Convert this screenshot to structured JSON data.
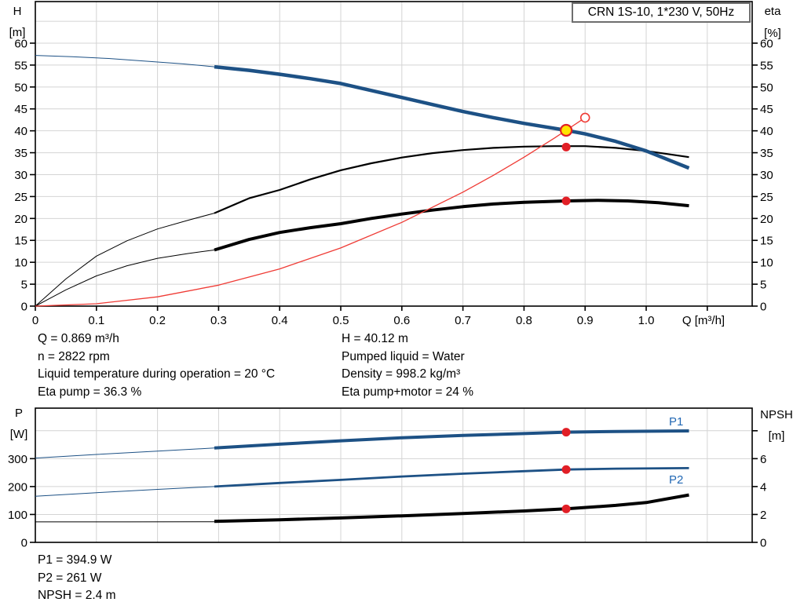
{
  "title_box": {
    "label": "CRN 1S-10, 1*230 V, 50Hz"
  },
  "info_top_left": [
    "Q = 0.869 m³/h",
    "n = 2822 rpm",
    "Liquid temperature during operation = 20 °C",
    "Eta pump = 36.3 %"
  ],
  "info_top_right": [
    "H = 40.12 m",
    "Pumped liquid = Water",
    "Density = 998.2 kg/m³",
    "Eta pump+motor = 24 %"
  ],
  "info_bottom": [
    "P1 = 394.9 W",
    "P2 = 261 W",
    "NPSH = 2.4 m"
  ],
  "colors": {
    "blue": "#1d5185",
    "black": "#000000",
    "red_line": "#ef3b35",
    "red": "#e11f26",
    "yellow": "#ffe400",
    "white": "#ffffff",
    "grid": "#d4d4d4",
    "frame": "#000000",
    "label_blue": "#2268b4"
  },
  "chart_data": [
    {
      "type": "line",
      "title": "CRN 1S-10, 1*230 V, 50Hz",
      "x_axis": {
        "label": "Q [m³/h]",
        "label_at": 1.094,
        "min": 0,
        "max": 1.1735,
        "ticks": [
          0,
          0.1,
          0.2,
          0.3,
          0.4,
          0.5,
          0.6,
          0.7,
          0.8,
          0.9,
          1.0,
          1.1
        ],
        "tick_labels": [
          "0",
          "0.1",
          "0.2",
          "0.3",
          "0.4",
          "0.5",
          "0.6",
          "0.7",
          "0.8",
          "0.9",
          "1.0",
          ""
        ],
        "grid": [
          0.1,
          0.2,
          0.3,
          0.4,
          0.5,
          0.6,
          0.7,
          0.8,
          0.9,
          1.0,
          1.1
        ]
      },
      "y_left": {
        "title": [
          "H",
          "[m]"
        ],
        "min": 0,
        "max": 69.49,
        "ticks": [
          0,
          5,
          10,
          15,
          20,
          25,
          30,
          35,
          40,
          45,
          50,
          55,
          60
        ],
        "tick_labels": [
          "0",
          "5",
          "10",
          "15",
          "20",
          "25",
          "30",
          "35",
          "40",
          "45",
          "50",
          "55",
          "60"
        ],
        "grid": [
          5,
          10,
          15,
          20,
          25,
          30,
          35,
          40,
          45,
          50,
          55,
          60,
          65
        ]
      },
      "y_right": {
        "title": [
          "eta",
          "[%]"
        ],
        "min": 0,
        "max": 69.49,
        "ticks": [
          0,
          5,
          10,
          15,
          20,
          25,
          30,
          35,
          40,
          45,
          50,
          55,
          60
        ],
        "tick_labels": [
          "0",
          "5",
          "10",
          "15",
          "20",
          "25",
          "30",
          "35",
          "40",
          "45",
          "50",
          "55",
          "60"
        ]
      },
      "series": [
        {
          "id": "eta-pump-curve-low-flow",
          "axis": "left",
          "color": "black",
          "width": 1,
          "points": [
            [
              0,
              0
            ],
            [
              0.05,
              6.2
            ],
            [
              0.1,
              11.4
            ],
            [
              0.15,
              14.9
            ],
            [
              0.2,
              17.6
            ],
            [
              0.25,
              19.6
            ],
            [
              0.293,
              21.2
            ]
          ]
        },
        {
          "id": "eta-pump-curve",
          "axis": "left",
          "color": "black",
          "width": 2.2,
          "points": [
            [
              0.293,
              21.2
            ],
            [
              0.35,
              24.6
            ],
            [
              0.4,
              26.5
            ],
            [
              0.45,
              28.9
            ],
            [
              0.5,
              31.0
            ],
            [
              0.55,
              32.6
            ],
            [
              0.6,
              33.9
            ],
            [
              0.65,
              34.9
            ],
            [
              0.7,
              35.6
            ],
            [
              0.75,
              36.1
            ],
            [
              0.8,
              36.4
            ],
            [
              0.85,
              36.5
            ],
            [
              0.9,
              36.5
            ],
            [
              0.95,
              36.1
            ],
            [
              1.0,
              35.4
            ],
            [
              1.07,
              34.0
            ]
          ]
        },
        {
          "id": "eta-pump-motor-curve-low-flow",
          "axis": "left",
          "color": "black",
          "width": 1,
          "points": [
            [
              0,
              0
            ],
            [
              0.05,
              3.7
            ],
            [
              0.1,
              6.9
            ],
            [
              0.15,
              9.2
            ],
            [
              0.2,
              10.9
            ],
            [
              0.25,
              12.0
            ],
            [
              0.293,
              12.8
            ]
          ]
        },
        {
          "id": "eta-pump-motor-curve",
          "axis": "left",
          "color": "black",
          "width": 4,
          "points": [
            [
              0.293,
              12.8
            ],
            [
              0.35,
              15.2
            ],
            [
              0.4,
              16.8
            ],
            [
              0.45,
              17.9
            ],
            [
              0.5,
              18.8
            ],
            [
              0.55,
              20.0
            ],
            [
              0.6,
              21.0
            ],
            [
              0.65,
              21.9
            ],
            [
              0.7,
              22.7
            ],
            [
              0.75,
              23.3
            ],
            [
              0.8,
              23.7
            ],
            [
              0.869,
              24.0
            ],
            [
              0.92,
              24.15
            ],
            [
              0.97,
              24.0
            ],
            [
              1.02,
              23.6
            ],
            [
              1.07,
              22.9
            ]
          ]
        },
        {
          "id": "qh-curve-low-flow",
          "axis": "left",
          "color": "blue",
          "width": 1,
          "points": [
            [
              0,
              57.2
            ],
            [
              0.06,
              56.9
            ],
            [
              0.12,
              56.5
            ],
            [
              0.18,
              55.9
            ],
            [
              0.24,
              55.3
            ],
            [
              0.293,
              54.6
            ]
          ]
        },
        {
          "id": "qh-curve",
          "axis": "left",
          "color": "blue",
          "width": 4.5,
          "points": [
            [
              0.293,
              54.6
            ],
            [
              0.35,
              53.8
            ],
            [
              0.4,
              52.9
            ],
            [
              0.45,
              51.9
            ],
            [
              0.5,
              50.8
            ],
            [
              0.55,
              49.2
            ],
            [
              0.6,
              47.6
            ],
            [
              0.65,
              46.0
            ],
            [
              0.7,
              44.4
            ],
            [
              0.75,
              43.0
            ],
            [
              0.8,
              41.7
            ],
            [
              0.869,
              40.12
            ],
            [
              0.9,
              39.3
            ],
            [
              0.95,
              37.6
            ],
            [
              1.0,
              35.4
            ],
            [
              1.07,
              31.5
            ]
          ]
        },
        {
          "id": "system-curve",
          "axis": "left",
          "color": "red_line",
          "width": 1.3,
          "points": [
            [
              0,
              0
            ],
            [
              0.1,
              0.53
            ],
            [
              0.2,
              2.12
            ],
            [
              0.3,
              4.78
            ],
            [
              0.4,
              8.49
            ],
            [
              0.5,
              13.27
            ],
            [
              0.6,
              19.11
            ],
            [
              0.7,
              26.01
            ],
            [
              0.75,
              29.86
            ],
            [
              0.8,
              33.97
            ],
            [
              0.85,
              38.36
            ],
            [
              0.869,
              40.12
            ],
            [
              0.9,
              43.0
            ]
          ]
        }
      ],
      "markers": [
        {
          "id": "duty-point",
          "type": "ring-dot",
          "q": 0.869,
          "value": 40.12,
          "axis": "left",
          "r": 7,
          "fill": "yellow",
          "stroke": "red",
          "stroke_width": 2.2,
          "interactable": true
        },
        {
          "id": "requested-duty-point",
          "type": "open",
          "q": 0.9,
          "value": 43.0,
          "axis": "left",
          "r": 5.5,
          "fill": "white",
          "stroke": "red_line",
          "stroke_width": 1.6,
          "interactable": true
        },
        {
          "id": "eta-pump-point",
          "type": "dot",
          "q": 0.869,
          "value": 36.3,
          "axis": "left",
          "r": 5.5,
          "fill": "red",
          "stroke": "none",
          "stroke_width": 0,
          "interactable": false
        },
        {
          "id": "eta-pump-motor-point",
          "type": "dot",
          "q": 0.869,
          "value": 24.0,
          "axis": "left",
          "r": 5.5,
          "fill": "red",
          "stroke": "none",
          "stroke_width": 0,
          "interactable": false
        }
      ],
      "curve_labels": []
    },
    {
      "type": "line",
      "title": "",
      "x_axis": {
        "label": "",
        "min": 0,
        "max": 1.1735,
        "ticks": [],
        "tick_labels": [],
        "grid": [
          0.1,
          0.2,
          0.3,
          0.4,
          0.5,
          0.6,
          0.7,
          0.8,
          0.9,
          1.0,
          1.1
        ]
      },
      "y_left": {
        "title": [
          "P",
          "[W]"
        ],
        "min": 0,
        "max": 481,
        "ticks": [
          0,
          100,
          200,
          300
        ],
        "tick_labels": [
          "0",
          "100",
          "200",
          "300"
        ],
        "grid": [
          100,
          200,
          300,
          400
        ]
      },
      "y_right": {
        "title": [
          "NPSH",
          "[m]"
        ],
        "min": 0,
        "max": 9.62,
        "ticks": [
          0,
          2,
          4,
          6,
          8
        ],
        "tick_labels": [
          "0",
          "2",
          "4",
          "6",
          ""
        ]
      },
      "series": [
        {
          "id": "p1-curve-low-flow",
          "axis": "left",
          "color": "blue",
          "width": 1,
          "points": [
            [
              0,
              302
            ],
            [
              0.1,
              315
            ],
            [
              0.2,
              327
            ],
            [
              0.293,
              338
            ]
          ]
        },
        {
          "id": "p1-curve",
          "axis": "left",
          "color": "blue",
          "width": 4,
          "points": [
            [
              0.293,
              338
            ],
            [
              0.4,
              352
            ],
            [
              0.5,
              364
            ],
            [
              0.6,
              375
            ],
            [
              0.7,
              383
            ],
            [
              0.8,
              390
            ],
            [
              0.869,
              394.9
            ],
            [
              0.95,
              397.5
            ],
            [
              1.07,
              399.5
            ]
          ]
        },
        {
          "id": "p2-curve-low-flow",
          "axis": "left",
          "color": "blue",
          "width": 1,
          "points": [
            [
              0,
              165
            ],
            [
              0.1,
              178
            ],
            [
              0.2,
              190
            ],
            [
              0.293,
              200
            ]
          ]
        },
        {
          "id": "p2-curve",
          "axis": "left",
          "color": "blue",
          "width": 2.8,
          "points": [
            [
              0.293,
              200
            ],
            [
              0.4,
              213
            ],
            [
              0.5,
              224
            ],
            [
              0.6,
              236
            ],
            [
              0.7,
              246
            ],
            [
              0.8,
              255
            ],
            [
              0.869,
              261
            ],
            [
              0.95,
              264
            ],
            [
              1.07,
              266
            ]
          ]
        },
        {
          "id": "npsh-curve-low-flow",
          "axis": "right",
          "color": "black",
          "width": 1,
          "points": [
            [
              0,
              1.47
            ],
            [
              0.15,
              1.47
            ],
            [
              0.293,
              1.48
            ]
          ]
        },
        {
          "id": "npsh-curve",
          "axis": "right",
          "color": "black",
          "width": 4,
          "points": [
            [
              0.293,
              1.5
            ],
            [
              0.4,
              1.62
            ],
            [
              0.5,
              1.75
            ],
            [
              0.6,
              1.9
            ],
            [
              0.7,
              2.07
            ],
            [
              0.8,
              2.25
            ],
            [
              0.869,
              2.4
            ],
            [
              0.95,
              2.65
            ],
            [
              1.0,
              2.85
            ],
            [
              1.07,
              3.4
            ]
          ]
        }
      ],
      "markers": [
        {
          "id": "p1-point",
          "type": "dot",
          "q": 0.869,
          "value": 394.9,
          "axis": "left",
          "r": 5.5,
          "fill": "red",
          "stroke": "none",
          "stroke_width": 0,
          "interactable": false
        },
        {
          "id": "p2-point",
          "type": "dot",
          "q": 0.869,
          "value": 261,
          "axis": "left",
          "r": 5.5,
          "fill": "red",
          "stroke": "none",
          "stroke_width": 0,
          "interactable": false
        },
        {
          "id": "npsh-point",
          "type": "dot",
          "q": 0.869,
          "value": 2.4,
          "axis": "right",
          "r": 5.5,
          "fill": "red",
          "stroke": "none",
          "stroke_width": 0,
          "interactable": false
        }
      ],
      "curve_labels": [
        {
          "id": "p1-curve-label",
          "text": "P1",
          "q": 1.049,
          "value": 433,
          "axis": "left"
        },
        {
          "id": "p2-curve-label",
          "text": "P2",
          "q": 1.049,
          "value": 225,
          "axis": "left"
        }
      ]
    }
  ]
}
